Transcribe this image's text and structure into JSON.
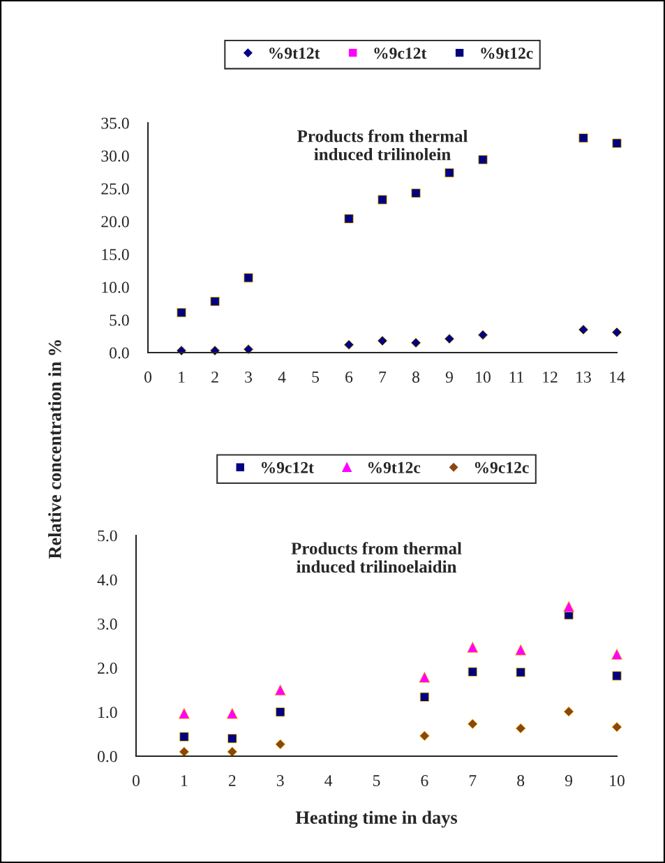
{
  "chart_data": [
    {
      "type": "scatter",
      "title": "Products from thermal\ninduced trilinolein",
      "ylabel": "Relative concentration in %",
      "x": [
        1,
        2,
        3,
        6,
        7,
        8,
        9,
        10,
        13,
        14
      ],
      "xlim": [
        0,
        14
      ],
      "xticks": [
        0,
        1,
        2,
        3,
        4,
        5,
        6,
        7,
        8,
        9,
        10,
        11,
        12,
        13,
        14
      ],
      "ylim": [
        0,
        35
      ],
      "yticks": [
        {
          "value": 0,
          "label": "0.0"
        },
        {
          "value": 5,
          "label": "5.0"
        },
        {
          "value": 10,
          "label": "10.0"
        },
        {
          "value": 15,
          "label": "15.0"
        },
        {
          "value": 20,
          "label": "20.0"
        },
        {
          "value": 25,
          "label": "25.0"
        },
        {
          "value": 30,
          "label": "30.0"
        },
        {
          "value": 35,
          "label": "35.0"
        }
      ],
      "legend": "top",
      "grid": false,
      "series": [
        {
          "name": "%9t12t",
          "color": "#000080",
          "marker": "diamond",
          "values": [
            0.3,
            0.3,
            0.5,
            1.2,
            1.8,
            1.5,
            2.1,
            2.7,
            3.5,
            3.1
          ]
        },
        {
          "name": "%9c12t",
          "color": "#ff00ff",
          "marker": "square",
          "values": [
            null,
            null,
            null,
            null,
            null,
            null,
            null,
            null,
            null,
            null
          ]
        },
        {
          "name": "%9t12c",
          "color": "#000080",
          "marker": "square",
          "values": [
            6.1,
            7.8,
            11.4,
            20.4,
            23.3,
            24.3,
            27.4,
            29.4,
            32.7,
            31.9
          ]
        }
      ]
    },
    {
      "type": "scatter",
      "title": "Products from thermal\ninduced trilinoelaidin",
      "xlabel": "Heating time in days",
      "x": [
        1,
        2,
        3,
        6,
        7,
        8,
        9,
        10
      ],
      "xlim": [
        0,
        10
      ],
      "xticks": [
        0,
        1,
        2,
        3,
        4,
        5,
        6,
        7,
        8,
        9,
        10
      ],
      "ylim": [
        0,
        5
      ],
      "yticks": [
        {
          "value": 0,
          "label": "0.0"
        },
        {
          "value": 1,
          "label": "1.0"
        },
        {
          "value": 2,
          "label": "2.0"
        },
        {
          "value": 3,
          "label": "3.0"
        },
        {
          "value": 4,
          "label": "4.0"
        },
        {
          "value": 5,
          "label": "5.0"
        }
      ],
      "legend": "top",
      "grid": false,
      "series": [
        {
          "name": "%9c12t",
          "color": "#000080",
          "marker": "square",
          "values": [
            0.44,
            0.4,
            1.0,
            1.34,
            1.91,
            1.9,
            3.2,
            1.82
          ]
        },
        {
          "name": "%9t12c",
          "color": "#ff00ff",
          "marker": "triangle",
          "values": [
            0.97,
            0.97,
            1.5,
            1.79,
            2.47,
            2.41,
            3.39,
            2.31
          ]
        },
        {
          "name": "%9c12c",
          "color": "#8b4513",
          "marker": "diamond",
          "values": [
            0.1,
            0.1,
            0.27,
            0.46,
            0.73,
            0.63,
            1.01,
            0.66
          ]
        }
      ]
    }
  ]
}
